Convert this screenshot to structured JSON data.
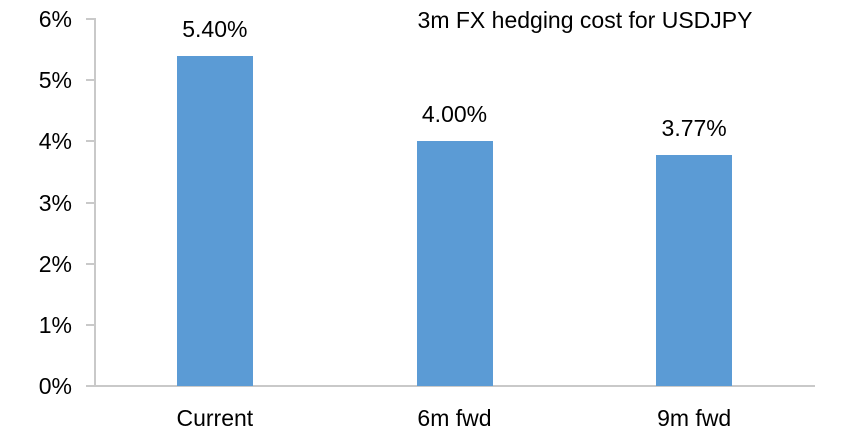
{
  "chart_data": {
    "type": "bar",
    "title": "3m FX hedging cost for USDJPY",
    "categories": [
      "Current",
      "6m fwd",
      "9m fwd"
    ],
    "values": [
      5.4,
      4.0,
      3.77
    ],
    "data_labels": [
      "5.40%",
      "4.00%",
      "3.77%"
    ],
    "ytick_values": [
      0,
      1,
      2,
      3,
      4,
      5,
      6
    ],
    "ytick_labels": [
      "0%",
      "1%",
      "2%",
      "3%",
      "4%",
      "5%",
      "6%"
    ],
    "ylim": [
      0,
      6
    ],
    "xlabel": "",
    "ylabel": "",
    "grid": "off",
    "legend": "none",
    "bar_color": "#5B9BD5",
    "axis_color": "#C9C9C9",
    "text_color": "#000000",
    "background_color": "#FFFFFF"
  }
}
